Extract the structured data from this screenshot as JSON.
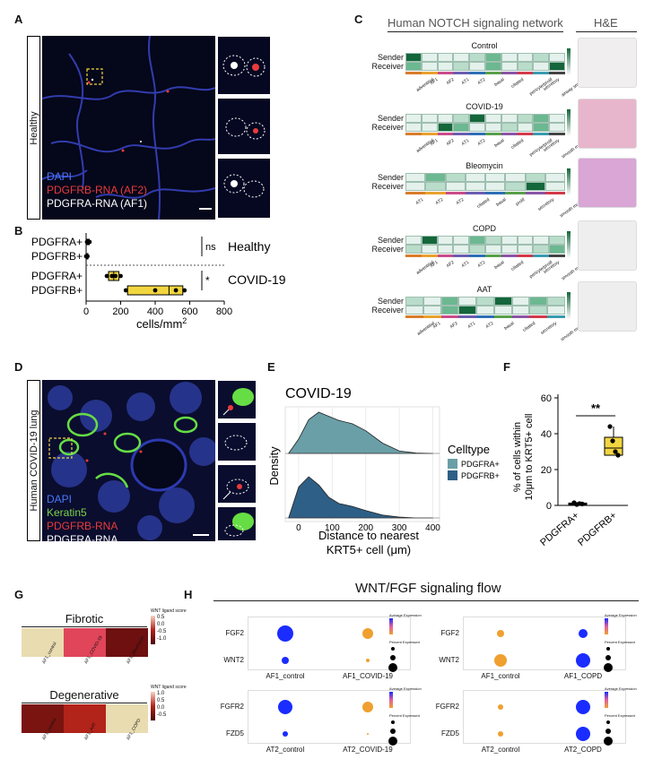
{
  "panels": {
    "a": "A",
    "b": "B",
    "c": "C",
    "d": "D",
    "e": "E",
    "f": "F",
    "g": "G",
    "h": "H"
  },
  "panel_a": {
    "side_label": "Healthy",
    "legend": [
      "DAPI",
      "PDGFRB-RNA (AF2)",
      "PDGFRA-RNA (AF1)"
    ],
    "colors": {
      "dapi": "#4a78ff",
      "pdgfrb": "#e83b3b",
      "pdgfra": "#ffffff"
    }
  },
  "panel_b": {
    "rows": [
      "PDGFRA+",
      "PDGFRB+",
      "PDGFRA+",
      "PDGFRB+"
    ],
    "groups": [
      "Healthy",
      "COVID-19"
    ],
    "sig": [
      "ns",
      "*"
    ],
    "xticks": [
      "0",
      "200",
      "400",
      "600",
      "800"
    ],
    "xlabel": "cells/mm",
    "xlabel_sup": "2"
  },
  "panel_c": {
    "title": "Human NOTCH signaling network",
    "he_title": "H&E",
    "row_labels": [
      "Sender",
      "Receiver"
    ],
    "groups": [
      {
        "name": "Control",
        "cols": [
          "adventitial",
          "AF1",
          "AF2",
          "AT1",
          "AT2",
          "basal",
          "ciliated",
          "pericyte/prolif",
          "secretory",
          "airway smooth"
        ]
      },
      {
        "name": "COVID-19",
        "cols": [
          "adventitial",
          "AF1",
          "AF2",
          "AT1",
          "AT2",
          "basal",
          "ciliated",
          "pericyte/prolif",
          "secretory",
          "smooth muscle"
        ]
      },
      {
        "name": "Bleomycin",
        "cols": [
          "AT1",
          "AT2",
          "AT2",
          "ciliated",
          "basal",
          "prolif",
          "secretory",
          "smooth muscle"
        ]
      },
      {
        "name": "COPD",
        "cols": [
          "adventitial",
          "AF1",
          "AF2",
          "AT1",
          "AT2",
          "basal",
          "ciliated",
          "pericyte/prolif",
          "secretory",
          "smooth muscle"
        ]
      },
      {
        "name": "AAT",
        "cols": [
          "adventitial",
          "AF1",
          "AF2",
          "AT1",
          "AT2",
          "basal",
          "ciliated",
          "secretory",
          "smooth muscle"
        ]
      }
    ]
  },
  "panel_d": {
    "side_label": "Human COVID-19 lung",
    "legend": [
      "DAPI",
      "Keratin5",
      "PDGFRB-RNA",
      "PDGFRA-RNA"
    ]
  },
  "panel_e": {
    "title": "COVID-19",
    "ylabel": "Density",
    "xlabel_1": "Distance to nearest",
    "xlabel_2": "KRT5+ cell (μm)",
    "legend_title": "Celltype",
    "legend": [
      "PDGFRA+",
      "PDGFRB+"
    ],
    "colors": [
      "#6a9fa8",
      "#2e5f86"
    ]
  },
  "panel_f": {
    "ylabel_1": "% of cells within",
    "ylabel_2": "10μm to KRT5+ cell",
    "sig": "**",
    "categories": [
      "PDGFRA+",
      "PDGFRB+"
    ]
  },
  "panel_g": {
    "blocks": [
      {
        "title": "Fibrotic",
        "legend_title": "WNT ligand score",
        "legend_ticks": [
          "0.5",
          "0.0",
          "-0.5",
          "-1.0"
        ],
        "cols": [
          "AF1_control",
          "AF1_COVID-19",
          "AF1_bleomycin"
        ],
        "colors": [
          "#e8dcb0",
          "#e0455a",
          "#6e0f10"
        ]
      },
      {
        "title": "Degenerative",
        "legend_title": "WNT ligand score",
        "legend_ticks": [
          "1.0",
          "0.5",
          "0.0",
          "-0.5"
        ],
        "cols": [
          "AF1_control",
          "AF1_AAT",
          "AF1_COPD"
        ],
        "colors": [
          "#7a1410",
          "#b2231a",
          "#e8dcb0"
        ]
      }
    ]
  },
  "panel_h": {
    "title": "WNT/FGF signaling flow",
    "legend_avg": "Average Expression",
    "legend_pct": "Percent Expressed",
    "subplots": [
      {
        "genes": [
          "FGF2",
          "WNT2"
        ],
        "groups": [
          "AF1_control",
          "AF1_COVID-19"
        ]
      },
      {
        "genes": [
          "FGF2",
          "WNT2"
        ],
        "groups": [
          "AF1_control",
          "AF1_COPD"
        ]
      },
      {
        "genes": [
          "FGFR2",
          "FZD5"
        ],
        "groups": [
          "AT2_control",
          "AT2_COVID-19"
        ]
      },
      {
        "genes": [
          "FGFR2",
          "FZD5"
        ],
        "groups": [
          "AT2_control",
          "AT2_COPD"
        ]
      }
    ]
  },
  "chart_data": [
    {
      "type": "bar",
      "panel": "B",
      "orientation": "horizontal-box",
      "categories": [
        "Healthy PDGFRA+",
        "Healthy PDGFRB+",
        "COVID-19 PDGFRA+",
        "COVID-19 PDGFRB+"
      ],
      "points": [
        [
          5,
          10,
          15,
          20
        ],
        [
          0,
          3,
          6,
          8
        ],
        [
          120,
          150,
          170,
          200
        ],
        [
          230,
          400,
          520,
          570
        ]
      ],
      "box": [
        [
          5,
          10,
          18
        ],
        [
          0,
          4,
          8
        ],
        [
          130,
          160,
          190
        ],
        [
          240,
          480,
          560
        ]
      ],
      "xlim": [
        0,
        800
      ],
      "xlabel": "cells/mm2"
    },
    {
      "type": "area",
      "panel": "E",
      "title": "COVID-19",
      "xlabel": "Distance to nearest KRT5+ cell (μm)",
      "ylabel": "Density",
      "x": [
        -30,
        0,
        30,
        60,
        90,
        120,
        160,
        200,
        250,
        300,
        350,
        400
      ],
      "series": [
        {
          "name": "PDGFRA+",
          "values": [
            0.0,
            0.35,
            0.82,
            1.0,
            0.9,
            0.8,
            0.72,
            0.55,
            0.25,
            0.06,
            0.01,
            0.0
          ]
        },
        {
          "name": "PDGFRB+",
          "values": [
            0.0,
            0.75,
            1.0,
            0.8,
            0.5,
            0.35,
            0.28,
            0.18,
            0.07,
            0.02,
            0.0,
            0.0
          ]
        }
      ],
      "xticks": [
        0,
        100,
        200,
        300,
        400
      ]
    },
    {
      "type": "scatter",
      "panel": "F",
      "categories": [
        "PDGFRA+",
        "PDGFRB+"
      ],
      "points": [
        [
          1.5,
          0.5,
          1.0,
          0.8
        ],
        [
          44,
          36,
          30,
          28
        ]
      ],
      "box": [
        [
          0.5,
          0.9,
          1.3
        ],
        [
          28,
          32,
          38
        ]
      ],
      "ylim": [
        0,
        60
      ],
      "yticks": [
        0,
        20,
        40,
        60
      ],
      "ylabel": "% of cells within 10μm to KRT5+ cell"
    }
  ]
}
